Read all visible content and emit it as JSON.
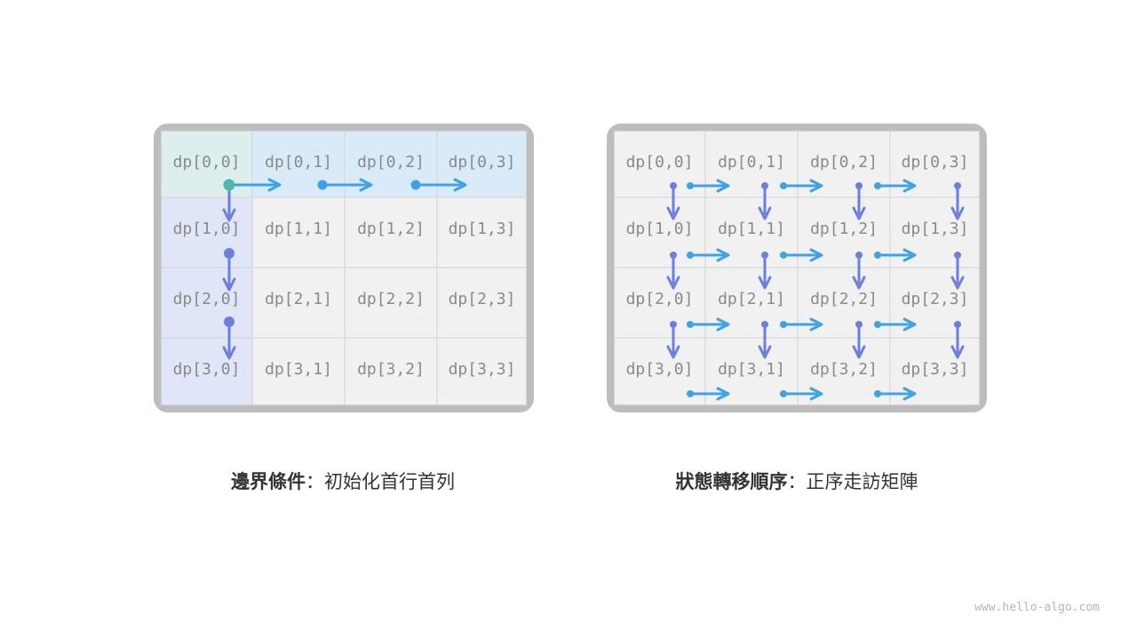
{
  "left_panel": {
    "cells": [
      [
        "dp[0,0]",
        "dp[0,1]",
        "dp[0,2]",
        "dp[0,3]"
      ],
      [
        "dp[1,0]",
        "dp[1,1]",
        "dp[1,2]",
        "dp[1,3]"
      ],
      [
        "dp[2,0]",
        "dp[2,1]",
        "dp[2,2]",
        "dp[2,3]"
      ],
      [
        "dp[3,0]",
        "dp[3,1]",
        "dp[3,2]",
        "dp[3,3]"
      ]
    ],
    "caption_bold": "邊界條件",
    "caption_rest": "：初始化首行首列"
  },
  "right_panel": {
    "cells": [
      [
        "dp[0,0]",
        "dp[0,1]",
        "dp[0,2]",
        "dp[0,3]"
      ],
      [
        "dp[1,0]",
        "dp[1,1]",
        "dp[1,2]",
        "dp[1,3]"
      ],
      [
        "dp[2,0]",
        "dp[2,1]",
        "dp[2,2]",
        "dp[2,3]"
      ],
      [
        "dp[3,0]",
        "dp[3,1]",
        "dp[3,2]",
        "dp[3,3]"
      ]
    ],
    "caption_bold": "狀態轉移順序",
    "caption_rest": "：正序走訪矩陣"
  },
  "colors": {
    "origin_cell": "#dcefec",
    "first_row": "#d9ebf8",
    "first_col": "#e1e5f8",
    "cell": "#f1f1f1",
    "frame": "#bdbdbd",
    "right_arrow": "#3ea2e8",
    "down_arrow": "#6b80dc",
    "origin_dot": "#4fb8a6"
  },
  "watermark": "www.hello-algo.com"
}
